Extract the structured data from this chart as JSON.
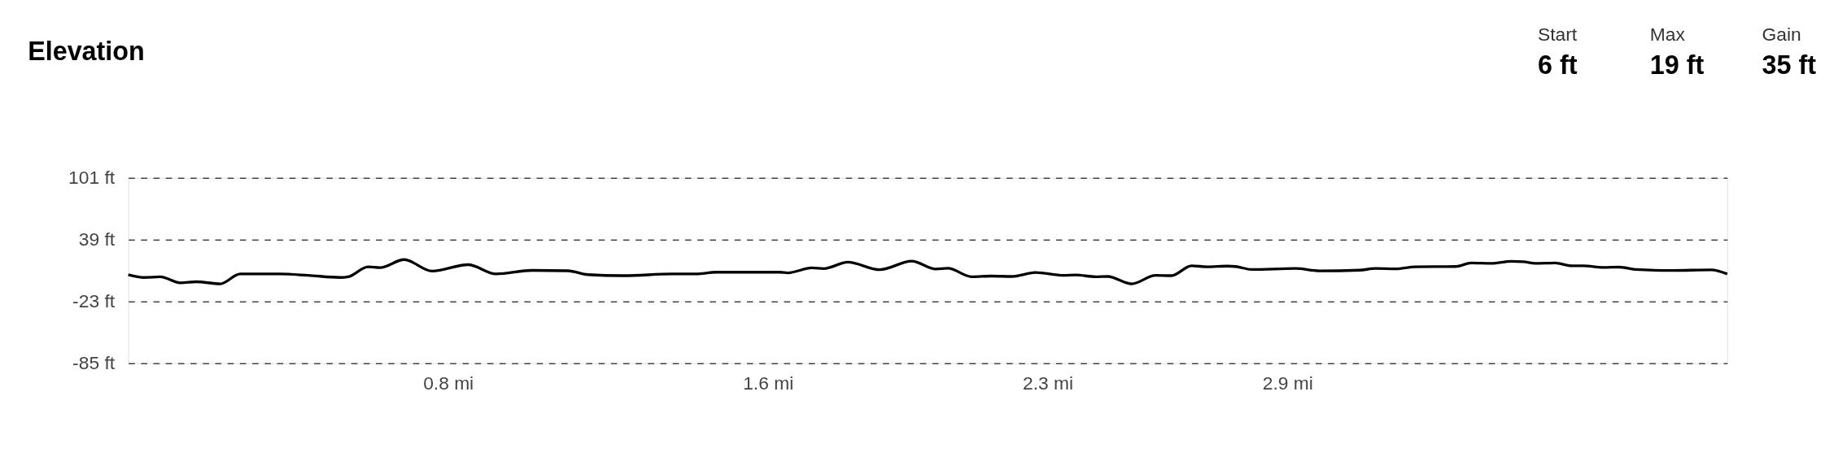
{
  "chart_data": {
    "type": "line",
    "title": "Elevation",
    "annotations": [
      "Start",
      "6 ft",
      "Max",
      "19 ft",
      "Gain",
      "35 ft"
    ],
    "x": [
      0.0,
      0.04,
      0.08,
      0.13,
      0.17,
      0.23,
      0.28,
      0.38,
      0.45,
      0.53,
      0.55,
      0.6,
      0.63,
      0.69,
      0.76,
      0.85,
      0.92,
      1.01,
      1.1,
      1.15,
      1.24,
      1.36,
      1.42,
      1.47,
      1.63,
      1.65,
      1.71,
      1.74,
      1.8,
      1.88,
      1.96,
      2.02,
      2.05,
      2.11,
      2.16,
      2.21,
      2.27,
      2.34,
      2.37,
      2.42,
      2.45,
      2.51,
      2.57,
      2.61,
      2.66,
      2.7,
      2.75,
      2.77,
      2.81,
      2.92,
      2.98,
      3.08,
      3.12,
      3.17,
      3.22,
      3.32,
      3.36,
      3.41,
      3.46,
      3.49,
      3.52,
      3.57,
      3.61,
      3.64,
      3.69,
      3.73,
      3.77,
      3.86,
      3.96,
      4.0
    ],
    "series": [
      {
        "color": "#000000",
        "values": [
          3.9,
          1.1,
          1.8,
          -4.3,
          -3.2,
          -5.3,
          4.6,
          4.6,
          3.2,
          1.1,
          1.8,
          11.8,
          11.0,
          19.0,
          7.5,
          13.9,
          4.6,
          8.2,
          7.8,
          3.9,
          2.9,
          4.6,
          4.6,
          6.4,
          6.4,
          5.7,
          10.7,
          10.0,
          16.4,
          8.9,
          17.5,
          9.6,
          10.3,
          1.8,
          2.5,
          2.1,
          6.1,
          3.2,
          3.6,
          1.8,
          2.1,
          -5.3,
          3.2,
          2.9,
          12.8,
          11.8,
          12.5,
          12.1,
          9.1,
          10.1,
          7.7,
          8.4,
          10.1,
          9.8,
          11.8,
          12.1,
          15.6,
          15.2,
          17.3,
          16.9,
          15.2,
          15.6,
          12.8,
          12.8,
          11.1,
          11.5,
          9.1,
          8.1,
          8.7,
          4.6
        ]
      }
    ],
    "xlim": [
      0,
      4.0
    ],
    "xticks": [
      {
        "value": 0.8,
        "label": "0.8 mi"
      },
      {
        "value": 1.6,
        "label": "1.6 mi"
      },
      {
        "value": 2.3,
        "label": "2.3 mi"
      },
      {
        "value": 2.9,
        "label": "2.9 mi"
      }
    ],
    "ylim": [
      -85,
      101
    ],
    "yticks": [
      {
        "value": -85,
        "label": "-85 ft"
      },
      {
        "value": -23,
        "label": "-23 ft"
      },
      {
        "value": 39,
        "label": "39 ft"
      },
      {
        "value": 101,
        "label": "101 ft"
      }
    ],
    "grid": "y",
    "line_style": "solid",
    "marker": "none"
  }
}
